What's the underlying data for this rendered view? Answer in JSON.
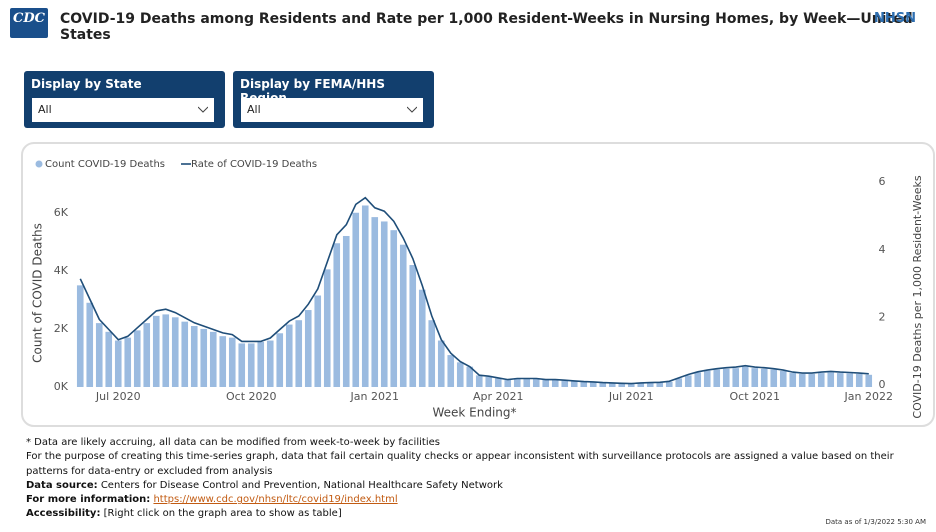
{
  "header": {
    "logo_left": "CDC",
    "title": "COVID-19 Deaths among Residents and Rate per 1,000 Resident-Weeks in Nursing Homes, by Week—United States",
    "logo_right": "NHSN"
  },
  "filters": [
    {
      "label": "Display by State",
      "value": "All"
    },
    {
      "label": "Display by FEMA/HHS Region",
      "value": "All"
    }
  ],
  "chart_data": {
    "type": "combo",
    "x_label": "Week Ending*",
    "y_label": "Count of COVID Deaths",
    "y2_label": "COVID-19 Deaths per 1,000 Resident-Weeks",
    "categories": [
      null,
      null,
      null,
      null,
      "Jul 2020",
      null,
      null,
      null,
      null,
      null,
      null,
      null,
      null,
      null,
      null,
      null,
      null,
      null,
      "Oct 2020",
      null,
      null,
      null,
      null,
      null,
      null,
      null,
      null,
      null,
      null,
      null,
      null,
      "Jan 2021",
      null,
      null,
      null,
      null,
      null,
      null,
      null,
      null,
      null,
      null,
      null,
      null,
      "Apr 2021",
      null,
      null,
      null,
      null,
      null,
      null,
      null,
      null,
      null,
      null,
      null,
      null,
      null,
      "Jul 2021",
      null,
      null,
      null,
      null,
      null,
      null,
      null,
      null,
      null,
      null,
      null,
      null,
      "Oct 2021",
      null,
      null,
      null,
      null,
      null,
      null,
      null,
      null,
      null,
      null,
      null,
      "Jan 2022"
    ],
    "series": [
      {
        "name": "Count COVID-19 Deaths",
        "type": "bar",
        "color": "#9bbbe0",
        "values": [
          3500,
          2900,
          2200,
          1900,
          1600,
          1700,
          1950,
          2200,
          2450,
          2500,
          2400,
          2250,
          2100,
          2000,
          1900,
          1750,
          1700,
          1500,
          1500,
          1550,
          1600,
          1850,
          2150,
          2300,
          2650,
          3150,
          4050,
          4950,
          5200,
          6000,
          6250,
          5850,
          5700,
          5400,
          4900,
          4200,
          3350,
          2300,
          1600,
          1100,
          850,
          700,
          400,
          350,
          300,
          250,
          280,
          280,
          280,
          250,
          250,
          220,
          200,
          180,
          170,
          150,
          140,
          120,
          110,
          130,
          140,
          150,
          180,
          300,
          400,
          500,
          560,
          600,
          630,
          650,
          700,
          650,
          630,
          600,
          550,
          480,
          450,
          450,
          480,
          500,
          480,
          470,
          450,
          420
        ]
      },
      {
        "name": "Rate of COVID-19 Deaths",
        "type": "line",
        "axis": "y2",
        "color": "#1f4e79",
        "values": [
          3.2,
          2.6,
          2.0,
          1.7,
          1.4,
          1.5,
          1.75,
          2.0,
          2.25,
          2.3,
          2.2,
          2.05,
          1.9,
          1.8,
          1.7,
          1.6,
          1.55,
          1.35,
          1.35,
          1.35,
          1.45,
          1.7,
          1.95,
          2.1,
          2.45,
          2.9,
          3.7,
          4.5,
          4.8,
          5.4,
          5.6,
          5.3,
          5.2,
          4.9,
          4.4,
          3.8,
          3.0,
          2.1,
          1.4,
          1.0,
          0.75,
          0.6,
          0.35,
          0.32,
          0.27,
          0.22,
          0.25,
          0.25,
          0.25,
          0.22,
          0.22,
          0.2,
          0.18,
          0.16,
          0.15,
          0.13,
          0.12,
          0.11,
          0.1,
          0.12,
          0.13,
          0.14,
          0.17,
          0.27,
          0.37,
          0.45,
          0.5,
          0.54,
          0.57,
          0.59,
          0.63,
          0.59,
          0.57,
          0.54,
          0.5,
          0.44,
          0.41,
          0.41,
          0.44,
          0.46,
          0.44,
          0.43,
          0.41,
          0.39
        ]
      }
    ],
    "ylim": [
      0,
      7300
    ],
    "yticks": [
      {
        "value": 0,
        "label": "0K"
      },
      {
        "value": 2000,
        "label": "2K"
      },
      {
        "value": 4000,
        "label": "4K"
      },
      {
        "value": 6000,
        "label": "6K"
      }
    ],
    "y2lim": [
      0,
      6.27
    ],
    "y2ticks": [
      0,
      2,
      4,
      6
    ],
    "grid": false,
    "legend": "top-left"
  },
  "notes": [
    "* Data are likely accruing, all data can be modified from week-to-week by facilities",
    "For the purpose of creating this time-series graph, data that fail certain quality checks or appear inconsistent with surveillance protocols are assigned a value based on their patterns for data-entry or excluded from analysis"
  ],
  "data_source": {
    "label": "Data source:",
    "text": "Centers for Disease Control and Prevention, National Healthcare Safety Network"
  },
  "more_info": {
    "label": "For more information:",
    "link": "https://www.cdc.gov/nhsn/ltc/covid19/index.html"
  },
  "accessibility": {
    "label": "Accessibility:",
    "text": "[Right click on the graph area to show as table]"
  },
  "data_as_of": "Data as of 1/3/2022 5:30 AM"
}
